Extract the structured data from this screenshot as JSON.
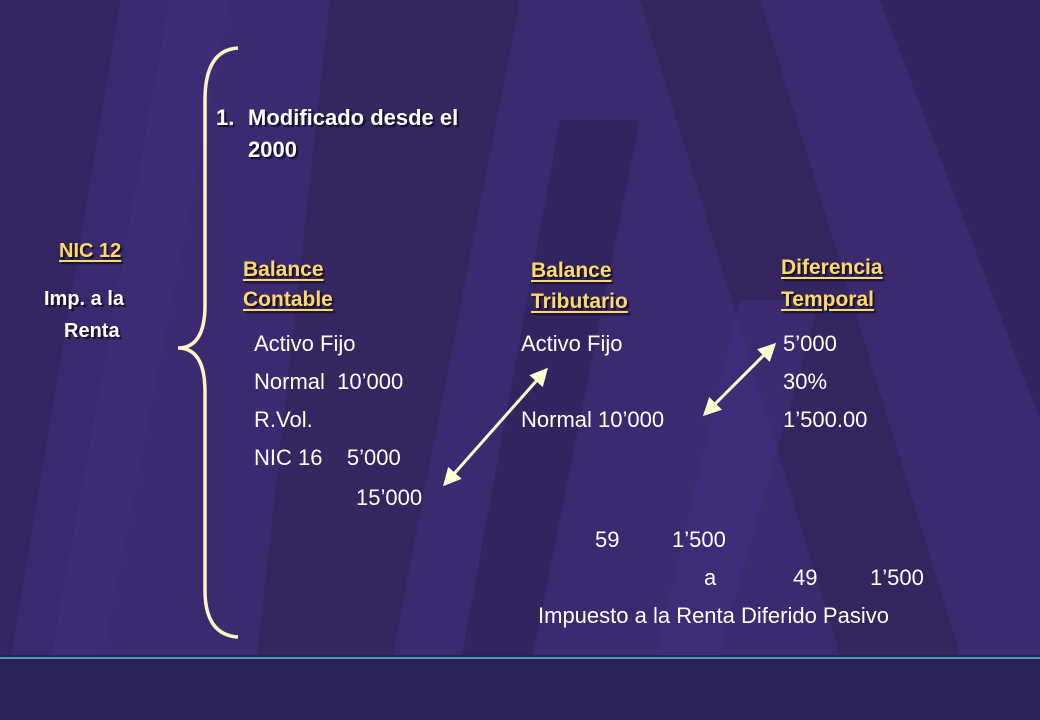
{
  "slide": {
    "point": {
      "number": "1.",
      "line1": "Modificado desde el",
      "line2": "2000"
    },
    "left_label": {
      "title": "NIC 12",
      "line1": "Imp. a la",
      "line2": "Renta"
    },
    "columns": {
      "contable": {
        "line1": "Balance",
        "line2": "Contable"
      },
      "tributario": {
        "line1": "Balance",
        "line2": "Tributario"
      },
      "temporal": {
        "line1": "Diferencia",
        "line2": "Temporal"
      }
    },
    "contable_rows": {
      "r1": "Activo Fijo",
      "r2": "Normal  10’000",
      "r3": "R.Vol.",
      "r4": "NIC 16    5’000",
      "r5": "15’000"
    },
    "tributario_rows": {
      "r1": "Activo Fijo",
      "r2": "Normal 10’000"
    },
    "temporal_rows": {
      "r1": "5’000",
      "r2": "30%",
      "r3": "1’500.00"
    },
    "entry": {
      "debit_account": "59",
      "debit_amount": "1’500",
      "connector": "a",
      "credit_account": "49",
      "credit_amount": "1’500",
      "description": "Impuesto a la Renta Diferido Pasivo"
    },
    "colors": {
      "background": "#3a2a70",
      "accent": "#ffd966",
      "brace": "#fff3c4",
      "arrow": "#ffffd0",
      "footer_line": "#4a9ab8"
    }
  }
}
